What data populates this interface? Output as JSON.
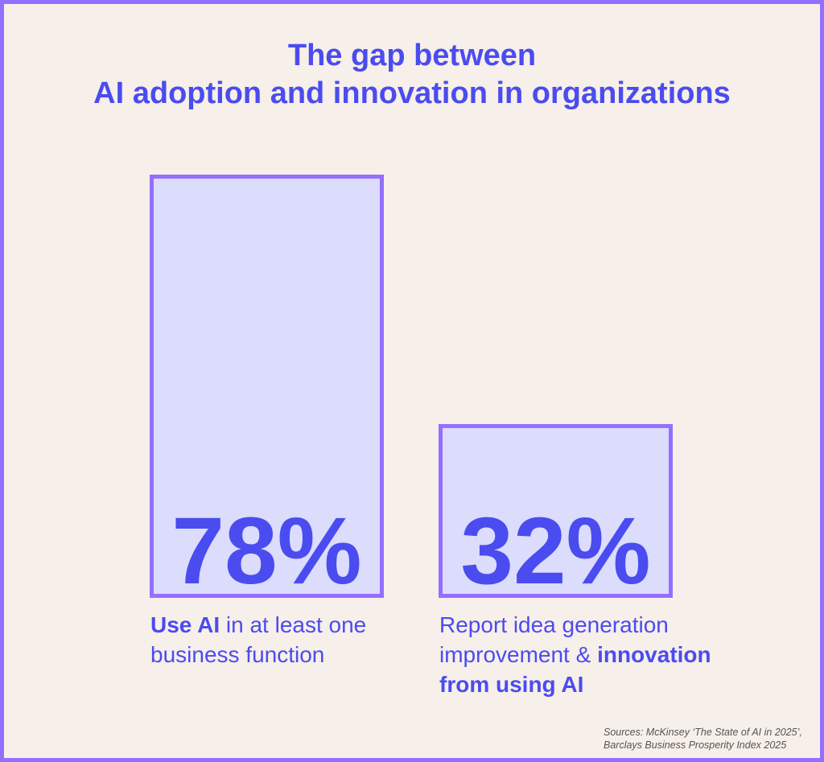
{
  "chart_data": {
    "type": "bar",
    "title": "The gap between AI adoption and innovation in organizations",
    "title_lines": [
      "The gap between",
      "AI adoption and innovation in organizations"
    ],
    "categories": [
      "Use AI in at least one business function",
      "Report idea generation improvement & innovation from using AI"
    ],
    "values": [
      78,
      32
    ],
    "value_labels": [
      "78%",
      "32%"
    ],
    "ylim": [
      0,
      100
    ],
    "grid": false,
    "labels": [
      {
        "bold": "Use AI",
        "rest": " in at least one business function"
      },
      {
        "pre": "Report idea generation improvement & ",
        "bold": "innovation from using AI"
      }
    ],
    "source_lines": [
      "Sources: McKinsey ‘The State of AI in 2025’,",
      "Barclays Business Prosperity Index 2025"
    ],
    "colors": {
      "accent": "#4a4cf0",
      "bar_border": "#9370ff",
      "bar_fill": "#dcdcfc",
      "background": "#f7efe9"
    }
  }
}
